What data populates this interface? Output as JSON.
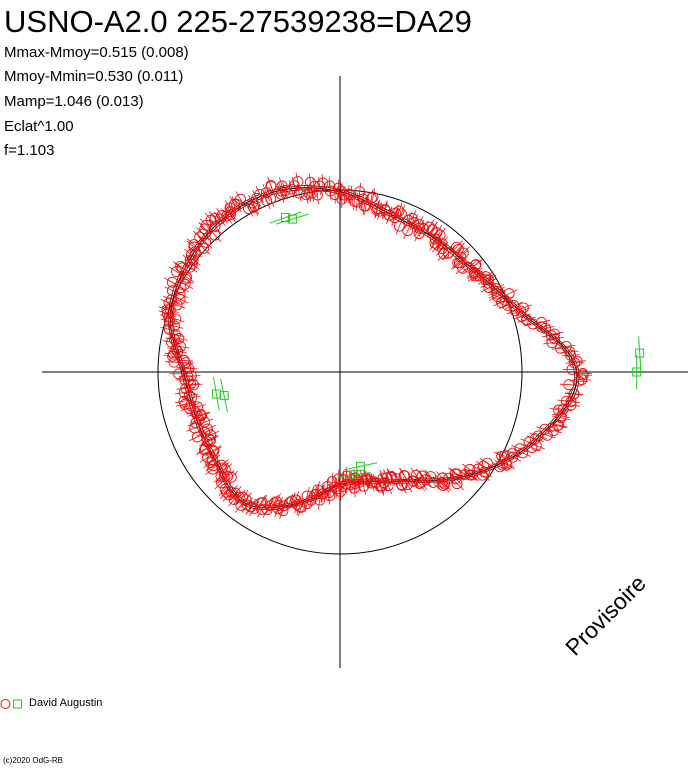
{
  "header": {
    "title": "USNO-A2.0 225-27539238=DA29",
    "stats": [
      "Mmax-Mmoy=0.515 (0.008)",
      "Mmoy-Mmin=0.530 (0.011)",
      "Mamp=1.046 (0.013)",
      "Eclat^1.00",
      "f=1.103"
    ]
  },
  "watermark": "Provisoire",
  "legend": {
    "label": "David Augustin"
  },
  "footer": {
    "copyright": "(c)2020 OdG-RB"
  },
  "colors": {
    "observations": "#ee1111",
    "maxima_minima": "#22cc22",
    "curve": "#000000",
    "axes": "#000000"
  },
  "chart_data": {
    "type": "scatter",
    "title": "USNO-A2.0 225-27539238=DA29",
    "coordinate_system": "polar",
    "phase_range": [
      0,
      1
    ],
    "reference_circle_radius": 1.0,
    "grid": false,
    "legend_position": "bottom-left",
    "model_curve": {
      "radius_points": [
        [
          0.0,
          1.3
        ],
        [
          0.05,
          1.05
        ],
        [
          0.1,
          0.93
        ],
        [
          0.15,
          0.9
        ],
        [
          0.2,
          0.91
        ],
        [
          0.25,
          0.99
        ],
        [
          0.3,
          1.05
        ],
        [
          0.35,
          1.06
        ],
        [
          0.4,
          1.03
        ],
        [
          0.45,
          0.98
        ],
        [
          0.5,
          0.86
        ],
        [
          0.55,
          0.83
        ],
        [
          0.6,
          0.84
        ],
        [
          0.65,
          0.89
        ],
        [
          0.7,
          0.76
        ],
        [
          0.75,
          0.62
        ],
        [
          0.8,
          0.63
        ],
        [
          0.85,
          0.74
        ],
        [
          0.9,
          0.94
        ],
        [
          0.95,
          1.15
        ],
        [
          1.0,
          1.3
        ]
      ]
    },
    "series": [
      {
        "name": "David Augustin",
        "marker": "circle",
        "point_count": 380,
        "scatter": 0.04
      },
      {
        "name": "David Augustin",
        "marker": "square",
        "points": [
          {
            "phase": 0.01,
            "radius": 1.65
          },
          {
            "phase": 0.0,
            "radius": 1.63
          },
          {
            "phase": 0.298,
            "radius": 0.88
          },
          {
            "phase": 0.304,
            "radius": 0.9
          },
          {
            "phase": 0.528,
            "radius": 0.69
          },
          {
            "phase": 0.532,
            "radius": 0.65
          },
          {
            "phase": 0.771,
            "radius": 0.57
          },
          {
            "phase": 0.784,
            "radius": 0.53
          }
        ]
      }
    ]
  }
}
